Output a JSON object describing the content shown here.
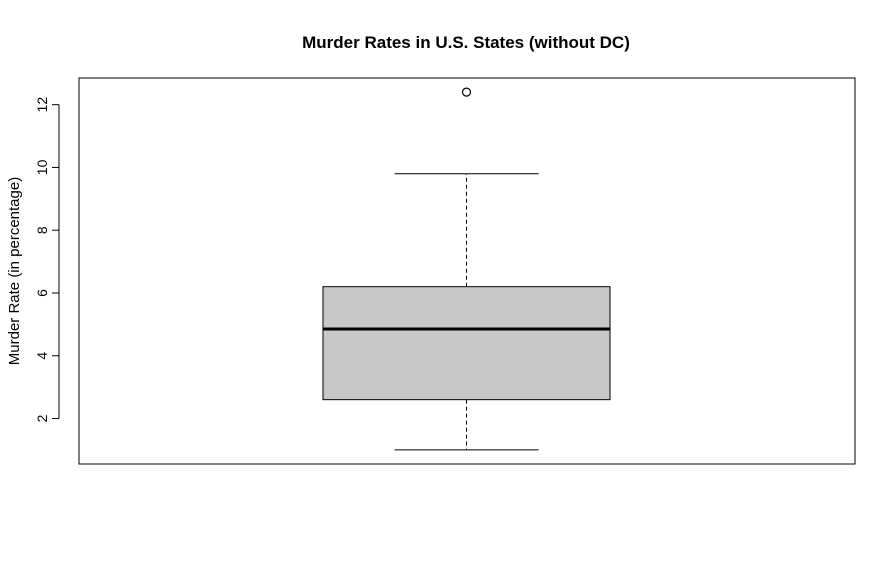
{
  "chart_data": {
    "type": "box",
    "title": "Murder Rates in U.S. States (without DC)",
    "xlabel": "",
    "ylabel": "Murder Rate (in percentage)",
    "ylim": [
      0.55,
      12.85
    ],
    "yticks": [
      2,
      4,
      6,
      8,
      10,
      12
    ],
    "ytick_labels": [
      "2",
      "4",
      "6",
      "8",
      "10",
      "12"
    ],
    "box": {
      "whisker_low": 1.0,
      "q1": 2.6,
      "median": 4.85,
      "q3": 6.2,
      "whisker_high": 9.8,
      "outliers": [
        12.4
      ]
    },
    "colors": {
      "box_fill": "#c8c8c8",
      "stroke": "#000000"
    }
  }
}
